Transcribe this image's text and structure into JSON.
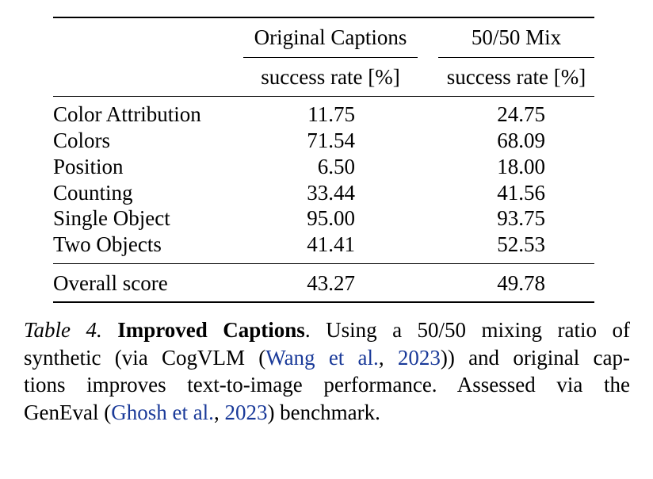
{
  "table": {
    "columns": [
      {
        "group": "Original Captions",
        "metric": "success rate [%]"
      },
      {
        "group": "50/50 Mix",
        "metric": "success rate [%]"
      }
    ],
    "rows": [
      {
        "label": "Color Attribution",
        "values": [
          "11.75",
          "24.75"
        ]
      },
      {
        "label": "Colors",
        "values": [
          "71.54",
          "68.09"
        ]
      },
      {
        "label": "Position",
        "values": [
          "6.50",
          "18.00"
        ]
      },
      {
        "label": "Counting",
        "values": [
          "33.44",
          "41.56"
        ]
      },
      {
        "label": "Single Object",
        "values": [
          "95.00",
          "93.75"
        ]
      },
      {
        "label": "Two Objects",
        "values": [
          "41.41",
          "52.53"
        ]
      }
    ],
    "overall": {
      "label": "Overall score",
      "values": [
        "43.27",
        "49.78"
      ]
    }
  },
  "caption": {
    "label": "Table 4.",
    "title": "Improved Captions",
    "text_1": ".  Using a 50/50 mixing ratio of",
    "text_2": "synthetic (via CogVLM (",
    "cite_1_author": "Wang et al.",
    "cite_1_sep": ", ",
    "cite_1_year": "2023",
    "text_3": ")) and original cap-",
    "text_4": "tions improves text-to-image performance.  Assessed via the",
    "text_5": "GenEval (",
    "cite_2_author": "Ghosh et al.",
    "cite_2_sep": ", ",
    "cite_2_year": "2023",
    "text_6": ") benchmark."
  },
  "style": {
    "citation_color": "#1a3a99"
  }
}
